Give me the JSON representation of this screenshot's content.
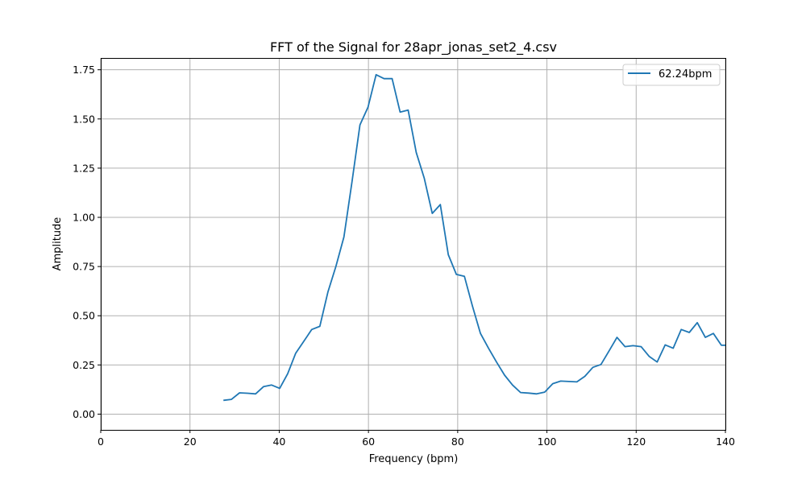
{
  "chart_data": {
    "type": "line",
    "title": "FFT of the Signal for 28apr_jonas_set2_4.csv",
    "xlabel": "Frequency (bpm)",
    "ylabel": "Amplitude",
    "xlim": [
      0,
      140
    ],
    "ylim": [
      -0.08,
      1.81
    ],
    "xticks": [
      0,
      20,
      40,
      60,
      80,
      100,
      120,
      140
    ],
    "yticks": [
      0.0,
      0.25,
      0.5,
      0.75,
      1.0,
      1.25,
      1.5,
      1.75
    ],
    "ytick_labels": [
      "0.00",
      "0.25",
      "0.50",
      "0.75",
      "1.00",
      "1.25",
      "1.50",
      "1.75"
    ],
    "grid": true,
    "legend_position": "top-right",
    "series": [
      {
        "name": "62.24bpm",
        "color": "#1f77b4",
        "x": [
          27.5,
          29.3,
          31.1,
          32.9,
          34.7,
          36.5,
          38.3,
          40.1,
          41.9,
          43.7,
          45.5,
          47.3,
          49.1,
          50.9,
          52.7,
          54.5,
          56.3,
          58.1,
          59.9,
          61.7,
          63.5,
          65.3,
          67.1,
          68.9,
          70.7,
          72.5,
          74.3,
          76.1,
          77.9,
          79.7,
          81.5,
          83.3,
          85.1,
          86.9,
          88.7,
          90.5,
          92.3,
          94.1,
          95.9,
          97.7,
          99.5,
          101.3,
          103.1,
          104.9,
          106.7,
          108.5,
          110.3,
          112.1,
          113.9,
          115.7,
          117.5,
          119.3,
          121.1,
          122.9,
          124.7,
          126.5,
          128.3,
          130.1,
          131.9,
          133.7,
          135.5,
          137.3,
          139.1,
          140.0
        ],
        "values": [
          0.07,
          0.075,
          0.108,
          0.106,
          0.103,
          0.14,
          0.148,
          0.131,
          0.205,
          0.31,
          0.37,
          0.43,
          0.446,
          0.62,
          0.75,
          0.9,
          1.18,
          1.47,
          1.56,
          1.725,
          1.705,
          1.705,
          1.535,
          1.545,
          1.33,
          1.2,
          1.02,
          1.065,
          0.81,
          0.71,
          0.7,
          0.55,
          0.41,
          0.335,
          0.265,
          0.198,
          0.148,
          0.11,
          0.107,
          0.103,
          0.112,
          0.155,
          0.168,
          0.166,
          0.164,
          0.192,
          0.238,
          0.252,
          0.32,
          0.39,
          0.343,
          0.348,
          0.343,
          0.294,
          0.265,
          0.352,
          0.335,
          0.43,
          0.415,
          0.465,
          0.39,
          0.41,
          0.35,
          0.35
        ]
      }
    ]
  }
}
